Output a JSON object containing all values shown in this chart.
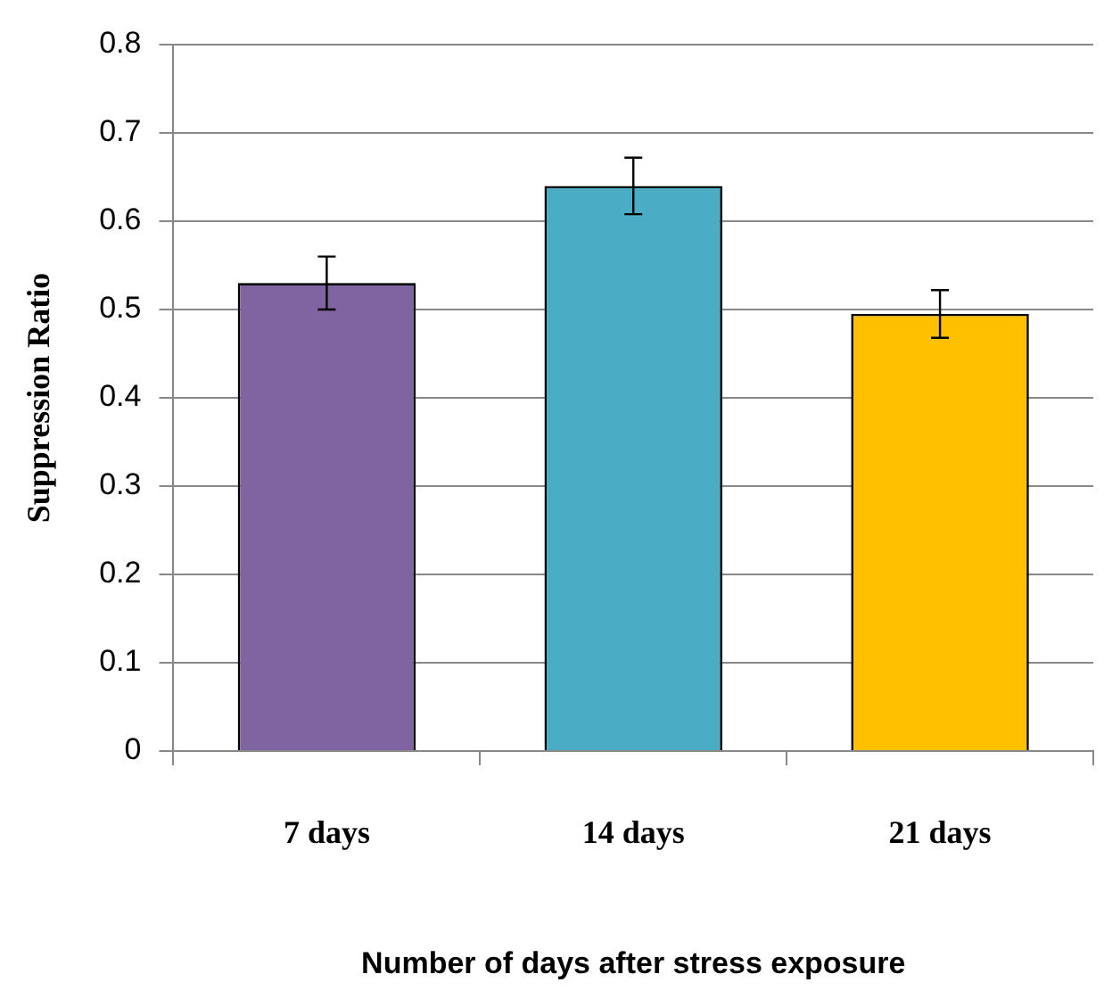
{
  "chart_data": {
    "type": "bar",
    "xlabel": "Number of days after stress exposure",
    "ylabel": "Suppression Ratio",
    "categories": [
      "7 days",
      "14 days",
      "21 days"
    ],
    "values": [
      0.53,
      0.64,
      0.495
    ],
    "colors": [
      "#8064a2",
      "#4bacc6",
      "#ffc000"
    ],
    "errors": [
      0.03,
      0.032,
      0.027
    ],
    "ylim": [
      0,
      0.8
    ],
    "yticks": [
      0,
      0.1,
      0.2,
      0.3,
      0.4,
      0.5,
      0.6,
      0.7,
      0.8
    ],
    "grid": "y"
  }
}
